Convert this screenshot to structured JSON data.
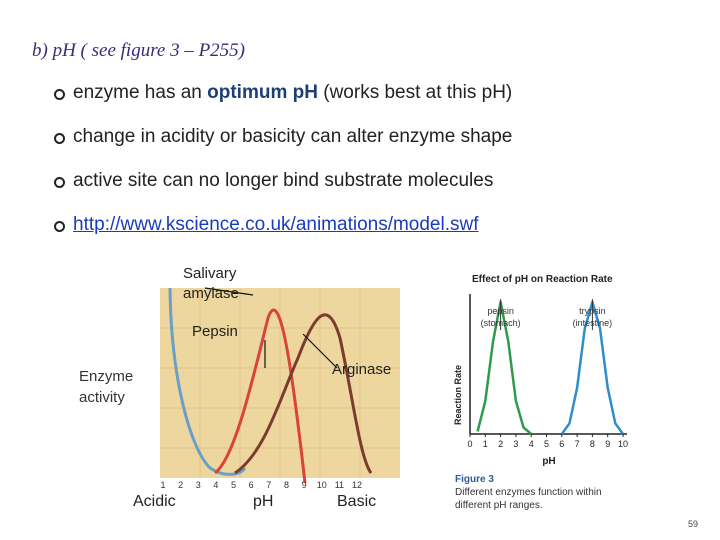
{
  "slide": {
    "title": "b) pH ( see figure 3 – P255)",
    "page_number": "59"
  },
  "bullets": {
    "b1": {
      "pre": "enzyme has an ",
      "bold1": "optimum",
      "sp": " ",
      "bold2": "pH",
      "post": " (works best at this pH)"
    },
    "b2": "change in acidity or basicity can alter enzyme shape",
    "b3": "active site can no longer bind substrate molecules",
    "b4": "http://www.kscience.co.uk/animations/model.swf"
  },
  "left_figure": {
    "ylabel_line1": "Enzyme",
    "ylabel_line2": "activity",
    "xlabel": "pH",
    "left_label": "Acidic",
    "right_label": "Basic",
    "label_salivary": "Salivary",
    "label_amylase": "amylase",
    "label_pepsin": "Pepsin",
    "label_arginase": "Arginase",
    "tick_labels": [
      "1",
      "2",
      "3",
      "4",
      "5",
      "6",
      "7",
      "8",
      "9",
      "10",
      "11",
      "12"
    ],
    "colors": {
      "panel": "#eed69f",
      "pepsin": "#d8443a",
      "amylase": "#6a9fc8",
      "arginase": "#7b3b2e"
    }
  },
  "chart_data": {
    "type": "line",
    "title": "Effect of pH on Reaction Rate",
    "xlabel": "pH",
    "ylabel": "Reaction Rate",
    "xlim": [
      0,
      10
    ],
    "x_ticks": [
      "0",
      "1",
      "2",
      "3",
      "4",
      "5",
      "6",
      "7",
      "8",
      "9",
      "10"
    ],
    "series": [
      {
        "name": "pepsin",
        "sublabel": "(stomach)",
        "color": "#2e9a4c",
        "x": [
          0.5,
          1.0,
          1.5,
          2.0,
          2.5,
          3.0,
          3.5,
          4.0
        ],
        "y": [
          0.02,
          0.25,
          0.7,
          1.0,
          0.7,
          0.25,
          0.05,
          0.0
        ]
      },
      {
        "name": "trypsin",
        "sublabel": "(intestine)",
        "color": "#2c8fcc",
        "x": [
          6.0,
          6.5,
          7.0,
          7.5,
          8.0,
          8.5,
          9.0,
          9.5,
          10.0
        ],
        "y": [
          0.0,
          0.08,
          0.35,
          0.8,
          1.0,
          0.8,
          0.35,
          0.08,
          0.0
        ]
      }
    ],
    "caption_title": "Figure 3",
    "caption_line1": "Different enzymes function within",
    "caption_line2": "different pH ranges."
  }
}
